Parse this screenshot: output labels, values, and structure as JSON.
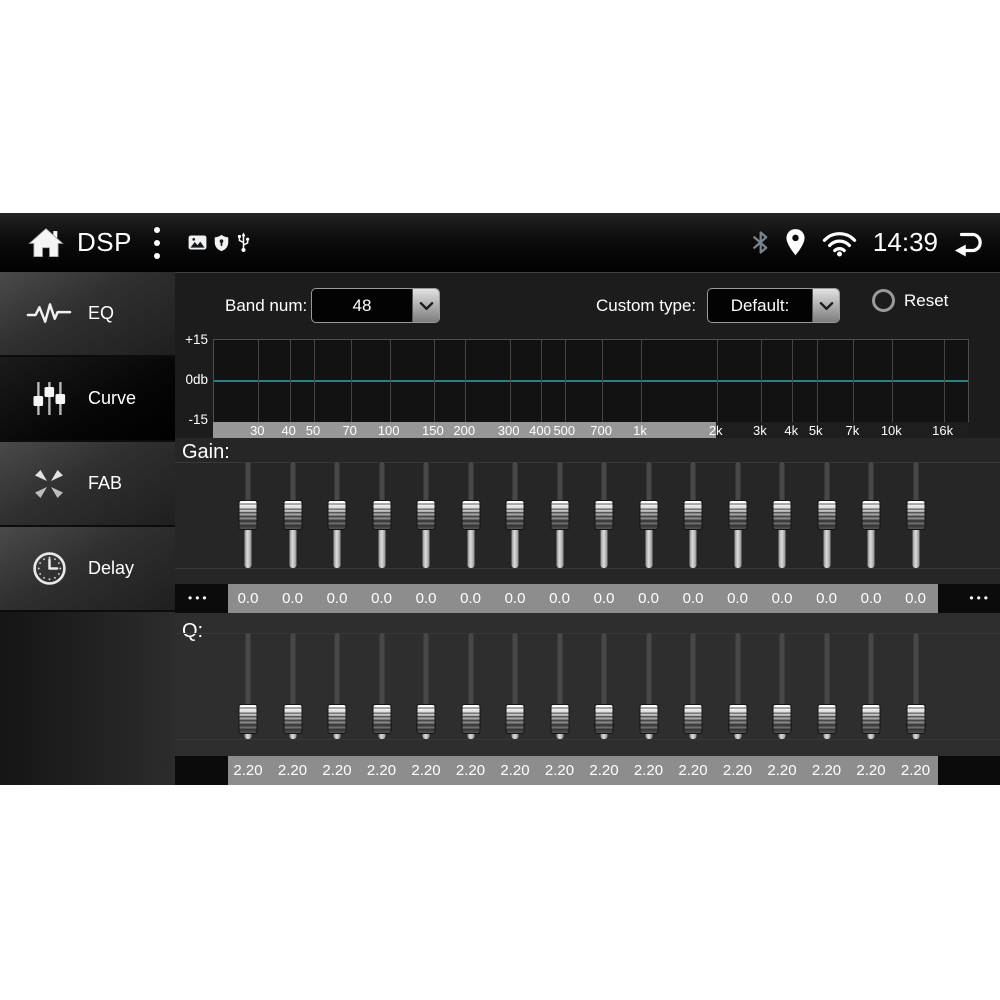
{
  "status_bar": {
    "title": "DSP",
    "time": "14:39",
    "icons": [
      "home-icon",
      "overflow-menu-icon",
      "gallery-icon",
      "shield-icon",
      "usb-icon",
      "bluetooth-icon",
      "location-icon",
      "wifi-icon",
      "back-icon"
    ],
    "bluetooth_color": "#79858e"
  },
  "sidebar": {
    "items": [
      {
        "label": "EQ",
        "icon": "waveform-icon",
        "selected": false
      },
      {
        "label": "Curve",
        "icon": "sliders-icon",
        "selected": true
      },
      {
        "label": "FAB",
        "icon": "fab-arrows-icon",
        "selected": false
      },
      {
        "label": "Delay",
        "icon": "clock-icon",
        "selected": false
      }
    ]
  },
  "toolbar": {
    "band_num_label": "Band num:",
    "band_num_value": "48",
    "custom_type_label": "Custom type:",
    "custom_type_value": "Default:",
    "reset_label": "Reset"
  },
  "chart_data": {
    "type": "line",
    "title": "EQ response curve",
    "y_ticks": [
      "+15",
      "0db",
      "-15"
    ],
    "ylim": [
      -15,
      15
    ],
    "x_scale": "log",
    "x_range_hz": [
      20,
      20000
    ],
    "x_ticks": [
      "30",
      "40",
      "50",
      "70",
      "100",
      "150",
      "200",
      "300",
      "400",
      "500",
      "700",
      "1k",
      "2k",
      "3k",
      "4k",
      "5k",
      "7k",
      "10k",
      "16k"
    ],
    "x_freqs_hz": [
      30,
      40,
      50,
      70,
      100,
      150,
      200,
      300,
      400,
      500,
      700,
      1000,
      2000,
      3000,
      4000,
      5000,
      7000,
      10000,
      16000
    ],
    "series": [
      {
        "name": "eq-response",
        "flat_value_db": 0
      }
    ],
    "curve_color": "#2b8084",
    "grid_color": "#464646",
    "highlight_strip_end_hz": 2000,
    "highlight_strip_color": "#979797"
  },
  "gain": {
    "label": "Gain:",
    "values": [
      "0.0",
      "0.0",
      "0.0",
      "0.0",
      "0.0",
      "0.0",
      "0.0",
      "0.0",
      "0.0",
      "0.0",
      "0.0",
      "0.0",
      "0.0",
      "0.0",
      "0.0",
      "0.0"
    ],
    "range": [
      -15,
      15
    ],
    "more_left": "•••",
    "more_right": "•••"
  },
  "q": {
    "label": "Q:",
    "values": [
      "2.20",
      "2.20",
      "2.20",
      "2.20",
      "2.20",
      "2.20",
      "2.20",
      "2.20",
      "2.20",
      "2.20",
      "2.20",
      "2.20",
      "2.20",
      "2.20",
      "2.20",
      "2.20"
    ]
  },
  "colors": {
    "value_strip": "#8d8d8d",
    "value_text": "#ffffff",
    "section_gain_bg": "#262626",
    "section_q_bg": "#2e2e2e"
  }
}
